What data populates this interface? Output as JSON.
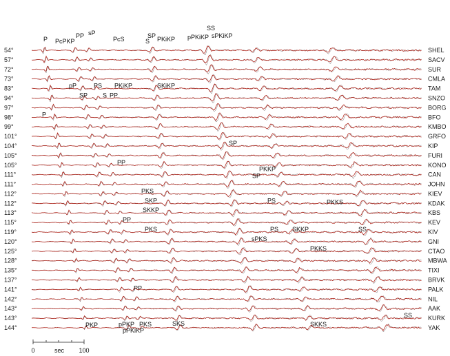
{
  "chart_data": {
    "type": "line",
    "traces": [
      {
        "distance": "54°",
        "station": "SHEL"
      },
      {
        "distance": "57°",
        "station": "SACV"
      },
      {
        "distance": "72°",
        "station": "SUR"
      },
      {
        "distance": "73°",
        "station": "CMLA"
      },
      {
        "distance": "83°",
        "station": "TAM"
      },
      {
        "distance": "94°",
        "station": "SNZO"
      },
      {
        "distance": "97°",
        "station": "BORG"
      },
      {
        "distance": "98°",
        "station": "BFO"
      },
      {
        "distance": "99°",
        "station": "KMBO"
      },
      {
        "distance": "101°",
        "station": "GRFO"
      },
      {
        "distance": "104°",
        "station": "KIP"
      },
      {
        "distance": "105°",
        "station": "FURI"
      },
      {
        "distance": "105°",
        "station": "KONO"
      },
      {
        "distance": "111°",
        "station": "CAN"
      },
      {
        "distance": "111°",
        "station": "JOHN"
      },
      {
        "distance": "112°",
        "station": "KIEV"
      },
      {
        "distance": "112°",
        "station": "KDAK"
      },
      {
        "distance": "113°",
        "station": "KBS"
      },
      {
        "distance": "115°",
        "station": "KEV"
      },
      {
        "distance": "119°",
        "station": "KIV"
      },
      {
        "distance": "120°",
        "station": "GNI"
      },
      {
        "distance": "125°",
        "station": "CTAO"
      },
      {
        "distance": "128°",
        "station": "MBWA"
      },
      {
        "distance": "135°",
        "station": "TIXI"
      },
      {
        "distance": "137°",
        "station": "BRVK"
      },
      {
        "distance": "141°",
        "station": "PALK"
      },
      {
        "distance": "142°",
        "station": "NIL"
      },
      {
        "distance": "143°",
        "station": "AAK"
      },
      {
        "distance": "143°",
        "station": "KURK"
      },
      {
        "distance": "144°",
        "station": "YAK"
      }
    ],
    "phase_labels": [
      {
        "text": "P",
        "trace": 0
      },
      {
        "text": "PcPKP",
        "trace": 0
      },
      {
        "text": "PP",
        "trace": 0
      },
      {
        "text": "sP",
        "trace": 0
      },
      {
        "text": "PcS",
        "trace": 0
      },
      {
        "text": "SP",
        "trace": 0
      },
      {
        "text": "S",
        "trace": 0
      },
      {
        "text": "PKiKP",
        "trace": 0
      },
      {
        "text": "pPKiKP",
        "trace": 0
      },
      {
        "text": "SS",
        "trace": 0
      },
      {
        "text": "sPKiKP",
        "trace": 0
      },
      {
        "text": "pP",
        "trace": 4
      },
      {
        "text": "PS",
        "trace": 4
      },
      {
        "text": "PKiKP",
        "trace": 4
      },
      {
        "text": "SKiKP",
        "trace": 4
      },
      {
        "text": "SP",
        "trace": 5
      },
      {
        "text": "S",
        "trace": 5
      },
      {
        "text": "PP",
        "trace": 5
      },
      {
        "text": "P",
        "trace": 7
      },
      {
        "text": "SP",
        "trace": 10
      },
      {
        "text": "PP",
        "trace": 12
      },
      {
        "text": "PKKP",
        "trace": 13
      },
      {
        "text": "SP",
        "trace": 13
      },
      {
        "text": "PKS",
        "trace": 15
      },
      {
        "text": "SKP",
        "trace": 16
      },
      {
        "text": "SKKP",
        "trace": 17
      },
      {
        "text": "PS",
        "trace": 16
      },
      {
        "text": "PKKS",
        "trace": 16
      },
      {
        "text": "PP",
        "trace": 18
      },
      {
        "text": "PKS",
        "trace": 19
      },
      {
        "text": "PS",
        "trace": 19
      },
      {
        "text": "SKKP",
        "trace": 19
      },
      {
        "text": "SS",
        "trace": 19
      },
      {
        "text": "sPKS",
        "trace": 20
      },
      {
        "text": "PKKS",
        "trace": 21
      },
      {
        "text": "PP",
        "trace": 25
      },
      {
        "text": "SS",
        "trace": 28
      },
      {
        "text": "PKP",
        "trace": 29
      },
      {
        "text": "pPKP",
        "trace": 29
      },
      {
        "text": "PKS",
        "trace": 29
      },
      {
        "text": "SKS",
        "trace": 29
      },
      {
        "text": "pPKiKP",
        "trace": 29
      },
      {
        "text": "SKKS",
        "trace": 29
      }
    ],
    "time_axis": {
      "unit_label": "sec",
      "tick_labels": [
        "0",
        "100"
      ]
    }
  }
}
